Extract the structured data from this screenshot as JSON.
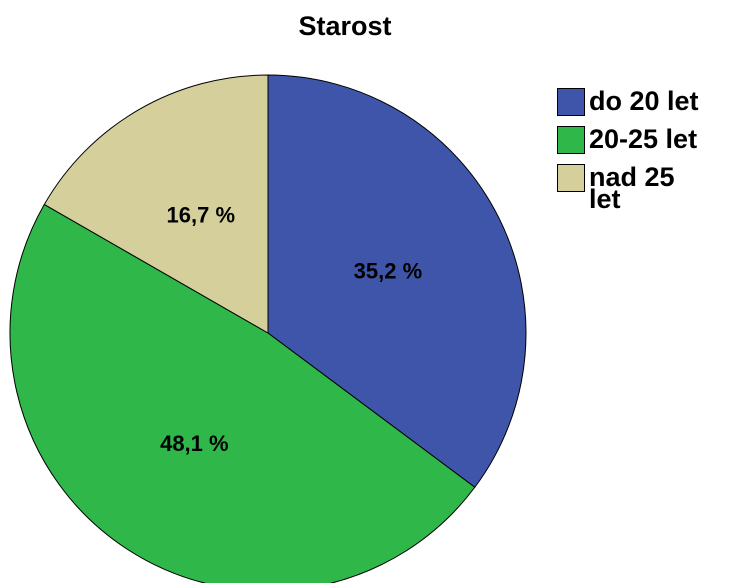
{
  "chart_data": {
    "type": "pie",
    "title": "Starost",
    "categories": [
      "do 20 let",
      "20-25 let",
      "nad 25 let"
    ],
    "values": [
      35.2,
      48.1,
      16.7
    ],
    "value_labels": [
      "35,2 %",
      "48,1 %",
      "16,7 %"
    ],
    "colors": [
      "#3f55aa",
      "#2fb74a",
      "#d4cf9b"
    ],
    "legend": "right"
  }
}
